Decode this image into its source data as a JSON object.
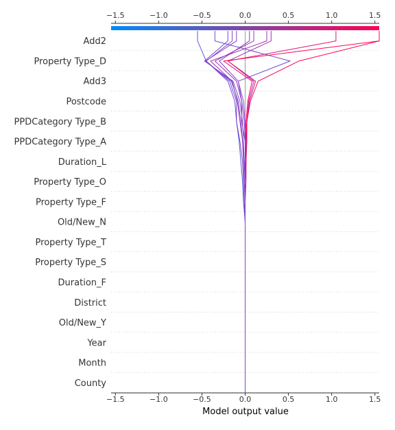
{
  "chart_data": {
    "type": "line",
    "subtype": "shap-decision-plot",
    "xlabel": "Model output value",
    "xlim": [
      -1.55,
      1.55
    ],
    "ticks": [
      -1.5,
      -1.0,
      -0.5,
      0.0,
      0.5,
      1.0,
      1.5
    ],
    "tick_labels": [
      "−1.5",
      "−1.0",
      "−0.5",
      "0.0",
      "0.5",
      "1.0",
      "1.5"
    ],
    "base_value": 0.0,
    "features": [
      "Add2",
      "Property Type_D",
      "Add3",
      "Postcode",
      "PPDCategory Type_B",
      "PPDCategory Type_A",
      "Duration_L",
      "Property Type_O",
      "Property Type_F",
      "Old/New_N",
      "Property Type_T",
      "Property Type_S",
      "Duration_F",
      "District",
      "Old/New_Y",
      "Year",
      "Month",
      "County"
    ],
    "colorbar": {
      "min_color": "#008bfb",
      "max_color": "#ff0052",
      "range": [
        -1.55,
        1.55
      ]
    },
    "grid": "dotted horizontal",
    "series": [
      {
        "output": -0.55,
        "values": [
          -0.55,
          -0.45,
          -0.18,
          -0.1,
          -0.1,
          -0.07,
          -0.05,
          -0.03,
          -0.02,
          0.0,
          0.0,
          0.0,
          0.0,
          0.0,
          0.0,
          0.0,
          0.0,
          0.0
        ]
      },
      {
        "output": -0.35,
        "values": [
          -0.35,
          0.52,
          -0.08,
          -0.04,
          -0.04,
          0.0,
          0.0,
          0.0,
          0.0,
          0.0,
          0.0,
          0.0,
          0.0,
          0.0,
          0.0,
          0.0,
          0.0,
          0.0
        ]
      },
      {
        "output": -0.15,
        "values": [
          -0.15,
          -0.45,
          -0.2,
          -0.12,
          -0.1,
          -0.06,
          -0.03,
          -0.02,
          -0.01,
          0.0,
          0.0,
          0.0,
          0.0,
          0.0,
          0.0,
          0.0,
          0.0,
          0.0
        ]
      },
      {
        "output": 0.25,
        "values": [
          0.25,
          -0.4,
          -0.15,
          -0.09,
          -0.06,
          -0.03,
          -0.01,
          0.0,
          0.0,
          0.0,
          0.0,
          0.0,
          0.0,
          0.0,
          0.0,
          0.0,
          0.0,
          0.0
        ]
      },
      {
        "output": 0.05,
        "values": [
          0.05,
          -0.3,
          -0.08,
          -0.02,
          0.0,
          0.01,
          0.01,
          0.0,
          0.0,
          0.0,
          0.0,
          0.0,
          0.0,
          0.0,
          0.0,
          0.0,
          0.0,
          0.0
        ]
      },
      {
        "output": 0.3,
        "values": [
          0.3,
          -0.2,
          0.1,
          0.04,
          0.02,
          0.02,
          0.01,
          0.01,
          0.0,
          0.0,
          0.0,
          0.0,
          0.0,
          0.0,
          0.0,
          0.0,
          0.0,
          0.0
        ]
      },
      {
        "output": 1.05,
        "values": [
          1.05,
          -0.2,
          0.12,
          0.05,
          0.02,
          0.01,
          0.0,
          0.0,
          0.0,
          0.0,
          0.0,
          0.0,
          0.0,
          0.0,
          0.0,
          0.0,
          0.0,
          0.0
        ]
      },
      {
        "output": 1.55,
        "values": [
          1.55,
          -0.25,
          0.08,
          0.03,
          0.01,
          0.0,
          0.0,
          0.0,
          0.0,
          0.0,
          0.0,
          0.0,
          0.0,
          0.0,
          0.0,
          0.0,
          0.0,
          0.0
        ]
      },
      {
        "output": 1.55,
        "values": [
          1.55,
          0.62,
          0.15,
          0.06,
          0.02,
          0.01,
          0.01,
          0.0,
          0.0,
          0.0,
          0.0,
          0.0,
          0.0,
          0.0,
          0.0,
          0.0,
          0.0,
          0.0
        ]
      },
      {
        "output": -0.2,
        "values": [
          -0.2,
          -0.47,
          -0.14,
          -0.06,
          -0.03,
          -0.02,
          -0.01,
          0.0,
          0.0,
          0.0,
          0.0,
          0.0,
          0.0,
          0.0,
          0.0,
          0.0,
          0.0,
          0.0
        ]
      },
      {
        "output": 0.1,
        "values": [
          0.1,
          -0.35,
          -0.1,
          -0.04,
          -0.01,
          0.0,
          0.0,
          0.0,
          0.0,
          0.0,
          0.0,
          0.0,
          0.0,
          0.0,
          0.0,
          0.0,
          0.0,
          0.0
        ]
      },
      {
        "output": -0.1,
        "values": [
          -0.1,
          -0.46,
          -0.16,
          -0.08,
          -0.05,
          -0.03,
          -0.02,
          -0.01,
          0.0,
          0.0,
          0.0,
          0.0,
          0.0,
          0.0,
          0.0,
          0.0,
          0.0,
          0.0
        ]
      }
    ]
  }
}
